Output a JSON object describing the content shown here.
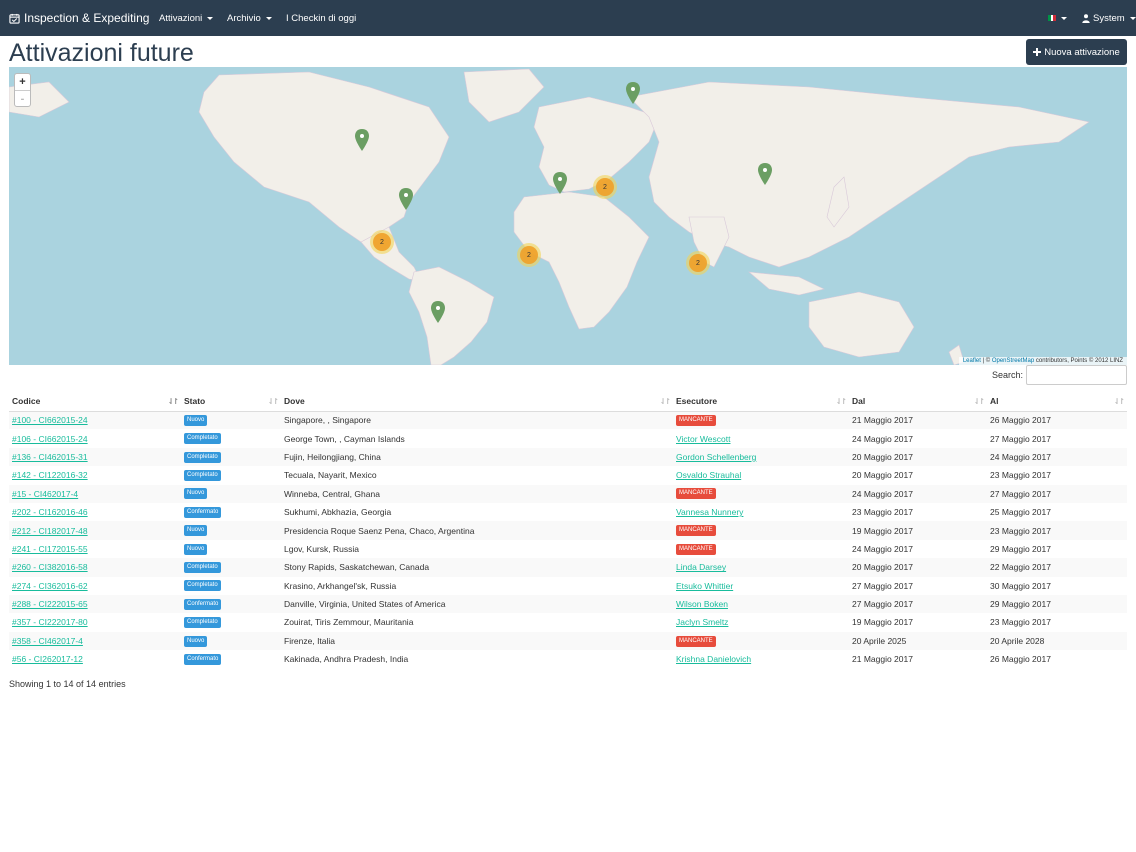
{
  "navbar": {
    "brand": "Inspection & Expediting",
    "menu_attivazioni": "Attivazioni",
    "menu_archivio": "Archivio",
    "menu_checkin": "I Checkin di oggi",
    "user": "System"
  },
  "header": {
    "title": "Attivazioni future",
    "new_button": "Nuova attivazione"
  },
  "map": {
    "zoom_in": "+",
    "zoom_out": "-",
    "attribution_leaflet": "Leaflet",
    "attribution_sep": " | © ",
    "attribution_osm": "OpenStreetMap",
    "attribution_rest": " contributors, Points © 2012 LINZ",
    "clusters": [
      "2",
      "2",
      "2",
      "2"
    ]
  },
  "search": {
    "label": "Search:",
    "value": ""
  },
  "table": {
    "headers": [
      "Codice",
      "Stato",
      "Dove",
      "Esecutore",
      "Dal",
      "Al"
    ],
    "rows": [
      {
        "codice": "#100 - CI662015-24",
        "stato": "Nuovo",
        "dove": "Singapore, , Singapore",
        "esecutore": "MANCANTE",
        "dal": "21 Maggio 2017",
        "al": "26 Maggio 2017"
      },
      {
        "codice": "#106 - CI662015-24",
        "stato": "Completato",
        "dove": "George Town, , Cayman Islands",
        "esecutore": "Victor Wescott",
        "dal": "24 Maggio 2017",
        "al": "27 Maggio 2017"
      },
      {
        "codice": "#136 - CI462015-31",
        "stato": "Completato",
        "dove": "Fujin, Heilongjiang, China",
        "esecutore": "Gordon Schellenberg",
        "dal": "20 Maggio 2017",
        "al": "24 Maggio 2017"
      },
      {
        "codice": "#142 - CI122016-32",
        "stato": "Completato",
        "dove": "Tecuala, Nayarit, Mexico",
        "esecutore": "Osvaldo Strauhal",
        "dal": "20 Maggio 2017",
        "al": "23 Maggio 2017"
      },
      {
        "codice": "#15 - CI462017-4",
        "stato": "Nuovo",
        "dove": "Winneba, Central, Ghana",
        "esecutore": "MANCANTE",
        "dal": "24 Maggio 2017",
        "al": "27 Maggio 2017"
      },
      {
        "codice": "#202 - CI162016-46",
        "stato": "Confermato",
        "dove": "Sukhumi, Abkhazia, Georgia",
        "esecutore": "Vannesa Nunnery",
        "dal": "23 Maggio 2017",
        "al": "25 Maggio 2017"
      },
      {
        "codice": "#212 - CI182017-48",
        "stato": "Nuovo",
        "dove": "Presidencia Roque Saenz Pena, Chaco, Argentina",
        "esecutore": "MANCANTE",
        "dal": "19 Maggio 2017",
        "al": "23 Maggio 2017"
      },
      {
        "codice": "#241 - CI172015-55",
        "stato": "Nuovo",
        "dove": "Lgov, Kursk, Russia",
        "esecutore": "MANCANTE",
        "dal": "24 Maggio 2017",
        "al": "29 Maggio 2017"
      },
      {
        "codice": "#260 - CI382016-58",
        "stato": "Completato",
        "dove": "Stony Rapids, Saskatchewan, Canada",
        "esecutore": "Linda Darsey",
        "dal": "20 Maggio 2017",
        "al": "22 Maggio 2017"
      },
      {
        "codice": "#274 - CI362016-62",
        "stato": "Completato",
        "dove": "Krasino, Arkhangel'sk, Russia",
        "esecutore": "Etsuko Whittier",
        "dal": "27 Maggio 2017",
        "al": "30 Maggio 2017"
      },
      {
        "codice": "#288 - CI222015-65",
        "stato": "Confermato",
        "dove": "Danville, Virginia, United States of America",
        "esecutore": "Wilson Boken",
        "dal": "27 Maggio 2017",
        "al": "29 Maggio 2017"
      },
      {
        "codice": "#357 - CI222017-80",
        "stato": "Completato",
        "dove": "Zouirat, Tiris Zemmour, Mauritania",
        "esecutore": "Jaclyn Smeltz",
        "dal": "19 Maggio 2017",
        "al": "23 Maggio 2017"
      },
      {
        "codice": "#358 - CI462017-4",
        "stato": "Nuovo",
        "dove": "Firenze, Italia",
        "esecutore": "MANCANTE",
        "dal": "20 Aprile 2025",
        "al": "20 Aprile 2028"
      },
      {
        "codice": "#56 - CI262017-12",
        "stato": "Confermato",
        "dove": "Kakinada, Andhra Pradesh, India",
        "esecutore": "Krishna Danielovich",
        "dal": "21 Maggio 2017",
        "al": "26 Maggio 2017"
      }
    ]
  },
  "footer": {
    "info": "Showing 1 to 14 of 14 entries"
  },
  "colors": {
    "navbar": "#2c3e50",
    "link": "#18bc9c",
    "label_info": "#3498db",
    "label_danger": "#e74c3c",
    "water": "#aad3df",
    "land": "#f2efe9",
    "marker": "#6b9e63"
  }
}
